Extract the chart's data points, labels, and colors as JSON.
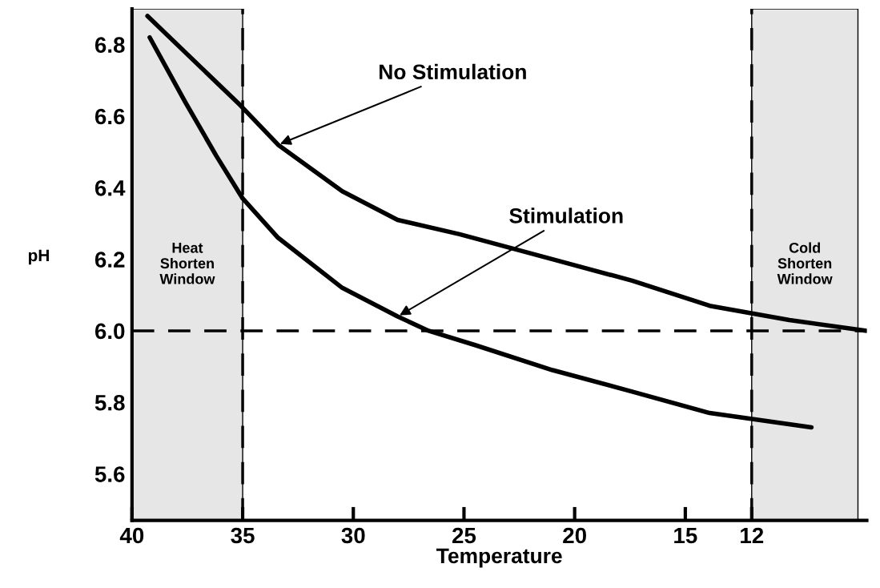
{
  "chart_data": {
    "type": "line",
    "xlabel": "Temperature",
    "ylabel": "pH",
    "xlim": [
      40,
      6.8
    ],
    "ylim": [
      5.47,
      6.9
    ],
    "xticks": [
      40,
      35,
      30,
      25,
      20,
      15,
      12
    ],
    "yticks": [
      {
        "value": 5.6,
        "label": "5.6"
      },
      {
        "value": 5.8,
        "label": "5.8"
      },
      {
        "value": 6.0,
        "label": "6.0"
      },
      {
        "value": 6.2,
        "label": "6.2"
      },
      {
        "value": 6.4,
        "label": "6.4"
      },
      {
        "value": 6.6,
        "label": "6.6"
      },
      {
        "value": 6.8,
        "label": "6.8"
      }
    ],
    "grid": false,
    "legend": false,
    "marker": "none",
    "line_style": "solid",
    "series": [
      {
        "color": "#000000",
        "x": [
          39.3,
          35.1,
          33.4,
          30.5,
          28.0,
          25.2,
          21.0,
          17.4,
          13.9,
          10.3,
          6.8
        ],
        "values": [
          6.88,
          6.63,
          6.52,
          6.39,
          6.31,
          6.27,
          6.2,
          6.14,
          6.07,
          6.03,
          6.0
        ]
      },
      {
        "color": "#000000",
        "x": [
          39.2,
          37.6,
          36.2,
          35.0,
          33.4,
          30.5,
          28.0,
          26.6,
          24.5,
          21.0,
          17.4,
          13.9,
          9.3
        ],
        "values": [
          6.82,
          6.64,
          6.49,
          6.37,
          6.26,
          6.12,
          6.04,
          6.0,
          5.96,
          5.89,
          5.83,
          5.77,
          5.73
        ]
      }
    ],
    "ref_lines": [
      {
        "axis": "y",
        "value": 6.0,
        "color": "#000000",
        "line_style": "dashed"
      },
      {
        "axis": "x",
        "value": 35,
        "color": "#000000",
        "line_style": "dashed"
      },
      {
        "axis": "x",
        "value": 12,
        "color": "#000000",
        "line_style": "dashed"
      }
    ],
    "bands": [
      {
        "axis": "x",
        "from": 40,
        "to": 35,
        "label": "Heat\nShorten\nWindow",
        "color": "#e6e6e6"
      },
      {
        "axis": "x",
        "from": 12,
        "to": 7.2,
        "label": "Cold\nShorten\nWindow",
        "color": "#e6e6e6"
      }
    ],
    "annotations": [
      {
        "text": "No Stimulation",
        "x": 33.4,
        "y": 6.52
      },
      {
        "text": "Stimulation",
        "x": 28.0,
        "y": 6.04
      }
    ]
  }
}
